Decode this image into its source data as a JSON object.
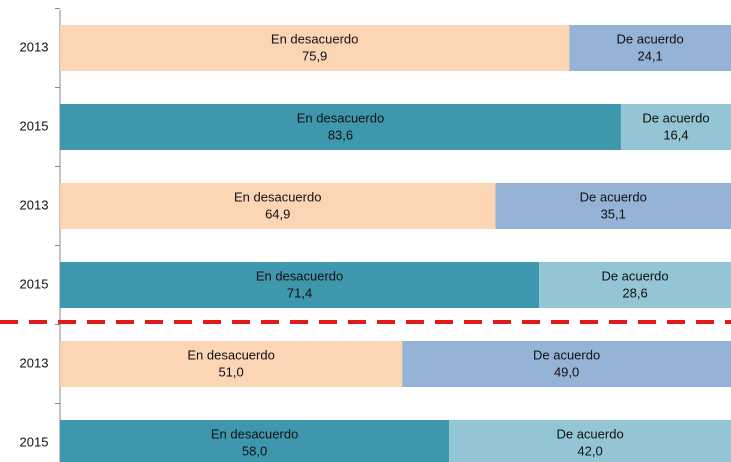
{
  "chart_data": {
    "type": "stacked-bar-horizontal",
    "categories": [
      "2013",
      "2015",
      "2013",
      "2015",
      "2013",
      "2015"
    ],
    "xlim": [
      0,
      100
    ],
    "series": [
      {
        "name": "En desacuerdo",
        "colors": [
          "#fcd5b5",
          "#3f97ae",
          "#fcd5b5",
          "#3f97ae",
          "#fcd5b5",
          "#3f97ae"
        ],
        "values": [
          75.9,
          83.6,
          64.9,
          71.4,
          51.0,
          58.0
        ],
        "value_labels": [
          "75,9",
          "83,6",
          "64,9",
          "71,4",
          "51,0",
          "58,0"
        ]
      },
      {
        "name": "De acuerdo",
        "colors": [
          "#95b3d7",
          "#93c5d4",
          "#95b3d7",
          "#93c5d4",
          "#95b3d7",
          "#93c5d4"
        ],
        "values": [
          24.1,
          16.4,
          35.1,
          28.6,
          49.0,
          42.0
        ],
        "value_labels": [
          "24,1",
          "16,4",
          "35,1",
          "28,6",
          "49,0",
          "42,0"
        ]
      }
    ]
  }
}
